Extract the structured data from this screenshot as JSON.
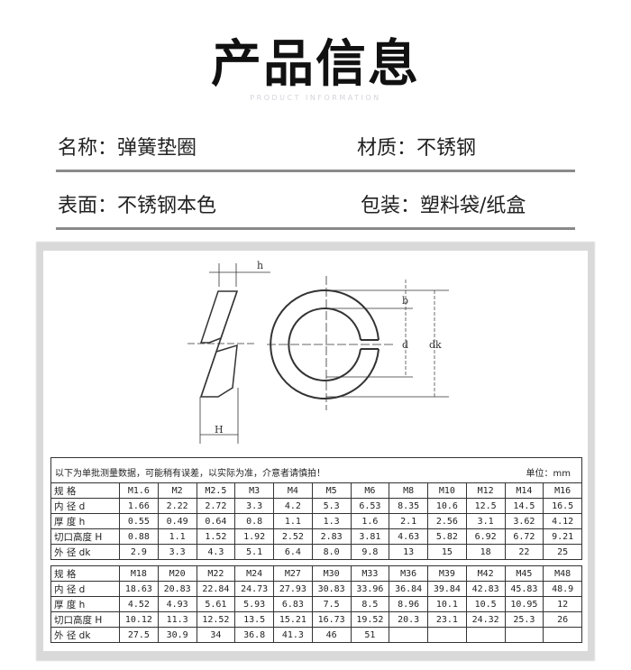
{
  "header": {
    "title": "产品信息",
    "subtitle": "PRODUCT INFORMATION"
  },
  "info": [
    {
      "label": "名称：",
      "value": "弹簧垫圈"
    },
    {
      "label": "材质：",
      "value": "不锈钢"
    },
    {
      "label": "表面：",
      "value": "不锈钢本色"
    },
    {
      "label": "包装：",
      "value": "塑料袋/纸盒"
    }
  ],
  "diagram": {
    "labels": {
      "h": "h",
      "H": "H",
      "b": "b",
      "d": "d",
      "dk": "dk"
    }
  },
  "table": {
    "note": "以下为单批测量数据，可能稍有误差，以实际为准，介意者请慎拍！",
    "unit": "单位：mm",
    "row_labels": [
      "规 格",
      "内 径 d",
      "厚 度 h",
      "切口高度 H",
      "外 径 dk"
    ],
    "part1": [
      [
        "M1.6",
        "M2",
        "M2.5",
        "M3",
        "M4",
        "M5",
        "M6",
        "M8",
        "M10",
        "M12",
        "M14",
        "M16"
      ],
      [
        "1.66",
        "2.22",
        "2.72",
        "3.3",
        "4.2",
        "5.3",
        "6.53",
        "8.35",
        "10.6",
        "12.5",
        "14.5",
        "16.5"
      ],
      [
        "0.55",
        "0.49",
        "0.64",
        "0.8",
        "1.1",
        "1.3",
        "1.6",
        "2.1",
        "2.56",
        "3.1",
        "3.62",
        "4.12"
      ],
      [
        "0.88",
        "1.1",
        "1.52",
        "1.92",
        "2.52",
        "2.83",
        "3.81",
        "4.63",
        "5.82",
        "6.92",
        "6.72",
        "9.21"
      ],
      [
        "2.9",
        "3.3",
        "4.3",
        "5.1",
        "6.4",
        "8.0",
        "9.8",
        "13",
        "15",
        "18",
        "22",
        "25"
      ]
    ],
    "part2": [
      [
        "M18",
        "M20",
        "M22",
        "M24",
        "M27",
        "M30",
        "M33",
        "M36",
        "M39",
        "M42",
        "M45",
        "M48"
      ],
      [
        "18.63",
        "20.83",
        "22.84",
        "24.73",
        "27.93",
        "30.83",
        "33.96",
        "36.84",
        "39.84",
        "42.83",
        "45.83",
        "48.9"
      ],
      [
        "4.52",
        "4.93",
        "5.61",
        "5.93",
        "6.83",
        "7.5",
        "8.5",
        "8.96",
        "10.1",
        "10.5",
        "10.95",
        "12"
      ],
      [
        "10.12",
        "11.3",
        "12.52",
        "13.5",
        "15.21",
        "16.73",
        "19.52",
        "20.3",
        "23.1",
        "24.32",
        "25.3",
        "26"
      ],
      [
        "27.5",
        "30.9",
        "34",
        "36.8",
        "41.3",
        "46",
        "51",
        "",
        "",
        "",
        "",
        ""
      ]
    ]
  }
}
